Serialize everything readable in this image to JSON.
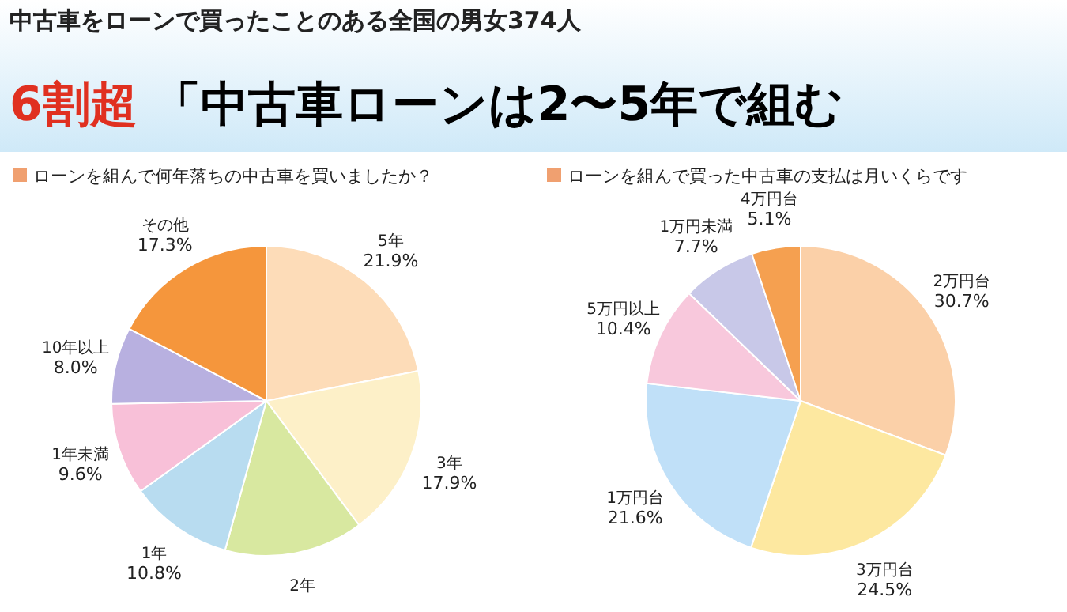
{
  "chart_data": [
    {
      "type": "pie",
      "title": "ローンを組んで何年落ちの中古車を買いましたか？",
      "annotations": [
        "中古車をローンで買ったことのある全国の男女374人",
        "6割超",
        "「中古車ローンは2〜5年で組む"
      ],
      "categories": [
        "5年",
        "3年",
        "2年",
        "1年",
        "1年未満",
        "10年以上",
        "その他"
      ],
      "values": [
        21.9,
        17.9,
        14.5,
        10.8,
        9.6,
        8.0,
        17.3
      ],
      "value_labels": [
        "21.9%",
        "17.9%",
        null,
        "10.8%",
        "9.6%",
        "8.0%",
        "17.3%"
      ],
      "colors": [
        "#fddcb8",
        "#fdf0c8",
        "#d8e8a0",
        "#b8dcf0",
        "#f8c0d8",
        "#b8b0e0",
        "#f5963c"
      ],
      "legend": false
    },
    {
      "type": "pie",
      "title": "ローンを組んで買った中古車の支払は月いくらです",
      "categories": [
        "2万円台",
        "3万円台",
        "1万円台",
        "5万円以上",
        "1万円未満",
        "4万円台"
      ],
      "values": [
        30.7,
        24.5,
        21.6,
        10.4,
        7.7,
        5.1
      ],
      "value_labels": [
        "30.7%",
        "24.5%",
        "21.6%",
        "10.4%",
        "7.7%",
        "5.1%"
      ],
      "colors": [
        "#fbd0a8",
        "#fde8a0",
        "#c0e0f8",
        "#f8c8dc",
        "#c8c8e8",
        "#f5a050"
      ],
      "legend": false
    }
  ]
}
